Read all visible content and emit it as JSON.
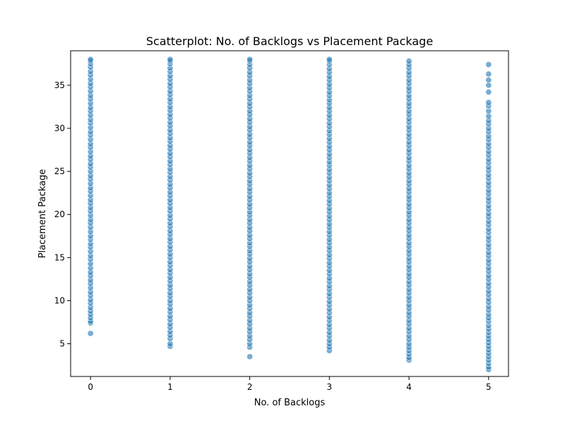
{
  "chart_data": {
    "type": "scatter",
    "title": "Scatterplot: No. of Backlogs vs Placement Package",
    "xlabel": "No. of Backlogs",
    "ylabel": "Placement Package",
    "xlim": [
      -0.25,
      5.25
    ],
    "ylim": [
      1.2,
      39.0
    ],
    "x_ticks": [
      0,
      1,
      2,
      3,
      4,
      5
    ],
    "y_ticks": [
      5,
      10,
      15,
      20,
      25,
      30,
      35
    ],
    "grid": false,
    "legend": "none",
    "marker_color": "#1f77b4",
    "marker_alpha": 0.6,
    "series": [
      {
        "points_by_x": [
          {
            "x": 0,
            "y_values": [
              6.2,
              7.4,
              7.6,
              8.0,
              8.4,
              8.8,
              9.2,
              9.7,
              10.1,
              10.6,
              11.0,
              11.5,
              12.0,
              12.4,
              12.9,
              13.3,
              13.8,
              14.3,
              14.8,
              15.2,
              15.7,
              16.2,
              16.6,
              17.1,
              17.5,
              18.0,
              18.5,
              19.0,
              19.4,
              19.9,
              20.4,
              20.8,
              21.3,
              21.7,
              22.2,
              22.7,
              23.1,
              23.6,
              24.1,
              24.5,
              25.0,
              25.5,
              25.9,
              26.4,
              26.8,
              27.3,
              27.8,
              28.2,
              28.7,
              29.2,
              29.6,
              30.1,
              30.6,
              31.0,
              31.5,
              32.0,
              32.4,
              32.9,
              33.4,
              33.8,
              34.3,
              34.8,
              35.2,
              35.7,
              36.2,
              36.6,
              37.1,
              37.5,
              37.8,
              38.0
            ]
          },
          {
            "x": 1,
            "y_values": [
              4.7,
              5.0,
              5.6,
              6.0,
              6.4,
              6.9,
              7.3,
              7.8,
              8.2,
              8.7,
              9.1,
              9.6,
              10.0,
              10.5,
              10.9,
              11.4,
              11.8,
              12.3,
              12.7,
              13.2,
              13.6,
              14.1,
              14.5,
              15.0,
              15.4,
              15.9,
              16.3,
              16.8,
              17.2,
              17.7,
              18.1,
              18.6,
              19.0,
              19.5,
              19.9,
              20.4,
              20.8,
              21.3,
              21.7,
              22.2,
              22.6,
              23.1,
              23.5,
              24.0,
              24.4,
              24.9,
              25.3,
              25.8,
              26.2,
              26.7,
              27.1,
              27.6,
              28.0,
              28.5,
              28.9,
              29.4,
              29.8,
              30.3,
              30.7,
              31.2,
              31.6,
              32.1,
              32.5,
              33.0,
              33.4,
              33.9,
              34.3,
              34.8,
              35.2,
              35.7,
              36.1,
              36.6,
              37.0,
              37.5,
              37.8,
              38.0
            ]
          },
          {
            "x": 2,
            "y_values": [
              3.5,
              4.6,
              5.0,
              5.5,
              5.9,
              6.4,
              6.8,
              7.3,
              7.7,
              8.2,
              8.6,
              9.1,
              9.5,
              10.0,
              10.4,
              10.9,
              11.3,
              11.8,
              12.2,
              12.7,
              13.1,
              13.6,
              14.0,
              14.5,
              14.9,
              15.4,
              15.8,
              16.3,
              16.7,
              17.2,
              17.6,
              18.1,
              18.5,
              19.0,
              19.4,
              19.9,
              20.3,
              20.8,
              21.2,
              21.7,
              22.1,
              22.6,
              23.0,
              23.5,
              23.9,
              24.4,
              24.8,
              25.3,
              25.7,
              26.2,
              26.6,
              27.1,
              27.5,
              28.0,
              28.4,
              28.9,
              29.3,
              29.8,
              30.2,
              30.7,
              31.1,
              31.6,
              32.0,
              32.5,
              32.9,
              33.4,
              33.8,
              34.3,
              34.7,
              35.2,
              35.6,
              36.1,
              36.5,
              37.0,
              37.4,
              37.8,
              38.0
            ]
          },
          {
            "x": 3,
            "y_values": [
              4.2,
              4.6,
              5.0,
              5.4,
              5.9,
              6.3,
              6.8,
              7.2,
              7.7,
              8.1,
              8.6,
              9.0,
              9.5,
              9.9,
              10.4,
              10.8,
              11.3,
              11.7,
              12.2,
              12.6,
              13.1,
              13.5,
              14.0,
              14.4,
              14.9,
              15.3,
              15.8,
              16.2,
              16.7,
              17.1,
              17.6,
              18.0,
              18.5,
              18.9,
              19.4,
              19.8,
              20.3,
              20.7,
              21.2,
              21.6,
              22.1,
              22.5,
              23.0,
              23.4,
              23.9,
              24.3,
              24.8,
              25.2,
              25.7,
              26.1,
              26.6,
              27.0,
              27.5,
              27.9,
              28.4,
              28.8,
              29.3,
              29.7,
              30.2,
              30.6,
              31.1,
              31.5,
              32.0,
              32.4,
              32.9,
              33.3,
              33.8,
              34.2,
              34.7,
              35.1,
              35.6,
              36.0,
              36.5,
              36.9,
              37.4,
              37.8,
              38.0
            ]
          },
          {
            "x": 4,
            "y_values": [
              3.1,
              3.4,
              3.8,
              4.2,
              4.6,
              5.0,
              5.5,
              5.9,
              6.4,
              6.8,
              7.3,
              7.7,
              8.2,
              8.6,
              9.1,
              9.5,
              10.0,
              10.4,
              10.9,
              11.3,
              11.8,
              12.2,
              12.7,
              13.1,
              13.6,
              14.0,
              14.5,
              14.9,
              15.4,
              15.8,
              16.3,
              16.7,
              17.2,
              17.6,
              18.1,
              18.5,
              19.0,
              19.4,
              19.9,
              20.3,
              20.8,
              21.2,
              21.7,
              22.1,
              22.6,
              23.0,
              23.5,
              23.9,
              24.4,
              24.8,
              25.3,
              25.7,
              26.2,
              26.6,
              27.1,
              27.5,
              28.0,
              28.4,
              28.9,
              29.3,
              29.8,
              30.2,
              30.7,
              31.1,
              31.6,
              32.0,
              32.5,
              32.9,
              33.4,
              33.8,
              34.3,
              34.7,
              35.2,
              35.6,
              36.1,
              36.5,
              37.0,
              37.4,
              37.8
            ]
          },
          {
            "x": 5,
            "y_values": [
              2.0,
              2.3,
              2.7,
              3.1,
              3.5,
              3.9,
              4.3,
              4.7,
              5.1,
              5.5,
              5.9,
              6.3,
              6.7,
              7.1,
              7.6,
              8.0,
              8.4,
              8.9,
              9.3,
              9.8,
              10.2,
              10.7,
              11.1,
              11.6,
              12.0,
              12.5,
              12.9,
              13.4,
              13.8,
              14.3,
              14.7,
              15.2,
              15.6,
              16.1,
              16.5,
              17.0,
              17.4,
              17.9,
              18.3,
              18.8,
              19.2,
              19.7,
              20.1,
              20.6,
              21.0,
              21.5,
              21.9,
              22.4,
              22.8,
              23.3,
              23.7,
              24.2,
              24.6,
              25.1,
              25.5,
              26.0,
              26.4,
              26.9,
              27.3,
              27.8,
              28.2,
              28.7,
              29.1,
              29.6,
              30.0,
              30.5,
              30.9,
              31.4,
              32.0,
              32.6,
              33.0,
              34.2,
              35.0,
              35.6,
              36.3,
              37.4
            ]
          }
        ]
      }
    ]
  }
}
